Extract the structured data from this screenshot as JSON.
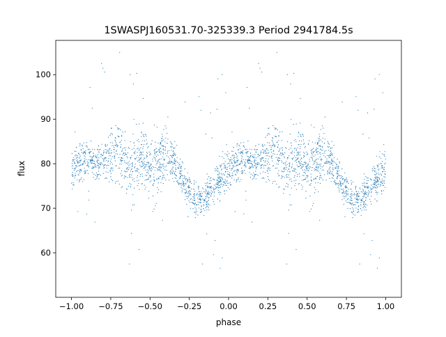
{
  "chart_data": {
    "type": "scatter",
    "title": "1SWASPJ160531.70-325339.3 Period 2941784.5s",
    "xlabel": "phase",
    "ylabel": "flux",
    "xlim": [
      -1.1,
      1.1
    ],
    "ylim": [
      50,
      107.7
    ],
    "xticks": [
      -1.0,
      -0.75,
      -0.5,
      -0.25,
      0.0,
      0.25,
      0.5,
      0.75,
      1.0
    ],
    "xtick_labels": [
      "−1.00",
      "−0.75",
      "−0.50",
      "−0.25",
      "0.00",
      "0.25",
      "0.50",
      "0.75",
      "1.00"
    ],
    "yticks": [
      60,
      70,
      80,
      90,
      100
    ],
    "ytick_labels": [
      "60",
      "70",
      "80",
      "90",
      "100"
    ],
    "grid": false,
    "marker_color": "#1f77b4",
    "note": "phase-folded light curve repeated over [-1,0] and [0,1]; representative binned mean flux and spread",
    "mean_curve": {
      "phase": [
        0.0,
        0.05,
        0.1,
        0.15,
        0.2,
        0.25,
        0.3,
        0.35,
        0.4,
        0.45,
        0.5,
        0.55,
        0.6,
        0.65,
        0.7,
        0.75,
        0.8,
        0.85,
        0.9,
        0.95,
        1.0
      ],
      "flux": [
        78,
        80,
        81,
        80,
        81,
        82,
        83,
        79,
        80,
        82,
        79,
        80,
        82,
        80,
        77,
        74,
        72,
        72,
        75,
        77,
        79
      ],
      "spread": [
        4,
        4,
        3,
        3,
        3,
        5,
        6,
        5,
        6,
        6,
        5,
        5,
        5,
        4,
        3,
        3,
        3,
        3,
        4,
        4,
        4
      ]
    }
  }
}
